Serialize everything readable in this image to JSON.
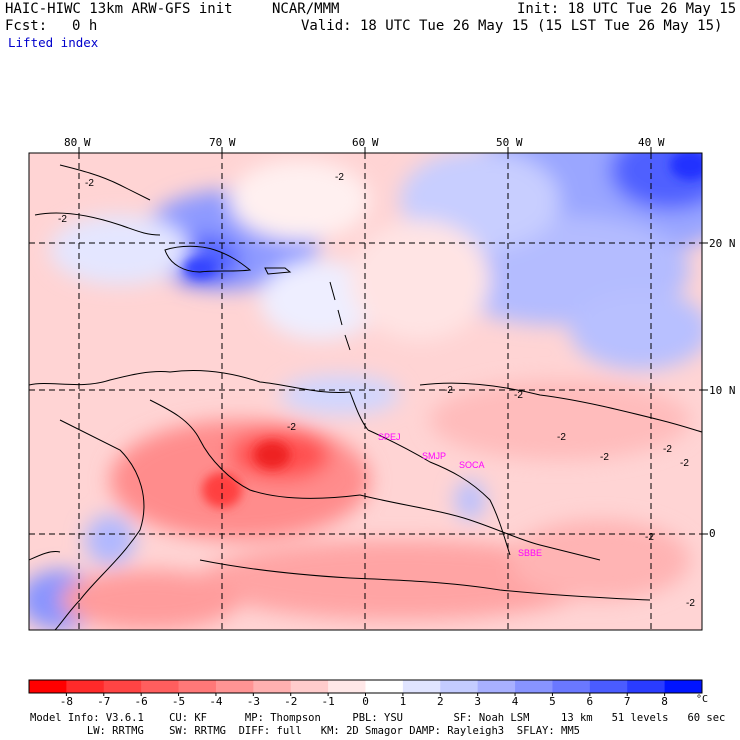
{
  "header": {
    "title_left": "HAIC-HIWC 13km ARW-GFS init",
    "org": "NCAR/MMM",
    "init": "Init: 18 UTC Tue 26 May 15",
    "fcst_label": "Fcst:",
    "fcst_value": "0 h",
    "valid": "Valid: 18 UTC Tue 26 May 15 (15 LST Tue 26 May 15)",
    "field_name": "Lifted index"
  },
  "map": {
    "lon_labels": [
      "80 W",
      "70 W",
      "60 W",
      "50 W",
      "40 W"
    ],
    "lat_labels": [
      "20 N",
      "10 N",
      "0"
    ],
    "contour_labels": [
      "-2",
      "-2",
      "-2",
      "-2",
      "-2",
      "-2",
      "-2",
      "-2",
      "-2",
      "-2",
      "-2",
      "-2"
    ],
    "stations": [
      "SPEJ",
      "SMJP",
      "SOCA",
      "SBBE"
    ],
    "colors": {
      "neutral": "#ffffff",
      "frame": "#000000",
      "gridline": "#000000",
      "coastline": "#000000",
      "contour": "#000000",
      "station": "#ff00ff"
    }
  },
  "colorbar": {
    "ticks": [
      "-8",
      "-7",
      "-6",
      "-5",
      "-4",
      "-3",
      "-2",
      "-1",
      "0",
      "1",
      "2",
      "3",
      "4",
      "5",
      "6",
      "7",
      "8"
    ],
    "unit": "°C",
    "colors": [
      "#ff0000",
      "#ff2a2a",
      "#ff4444",
      "#ff5e5e",
      "#ff7878",
      "#ff9494",
      "#ffb0b0",
      "#ffcccc",
      "#ffe8e8",
      "#ffffff",
      "#e0e4ff",
      "#c4ccff",
      "#a8b0ff",
      "#8894ff",
      "#6a78ff",
      "#4a5cff",
      "#2a3cff",
      "#0014ff"
    ]
  },
  "footer": {
    "line1": "Model Info: V3.6.1    CU: KF      MP: Thompson     PBL: YSU        SF: Noah LSM     13 km   51 levels   60 sec",
    "line2": "         LW: RRTMG    SW: RRTMG  DIFF: full   KM: 2D Smagor DAMP: Rayleigh3  SFLAY: MM5"
  }
}
